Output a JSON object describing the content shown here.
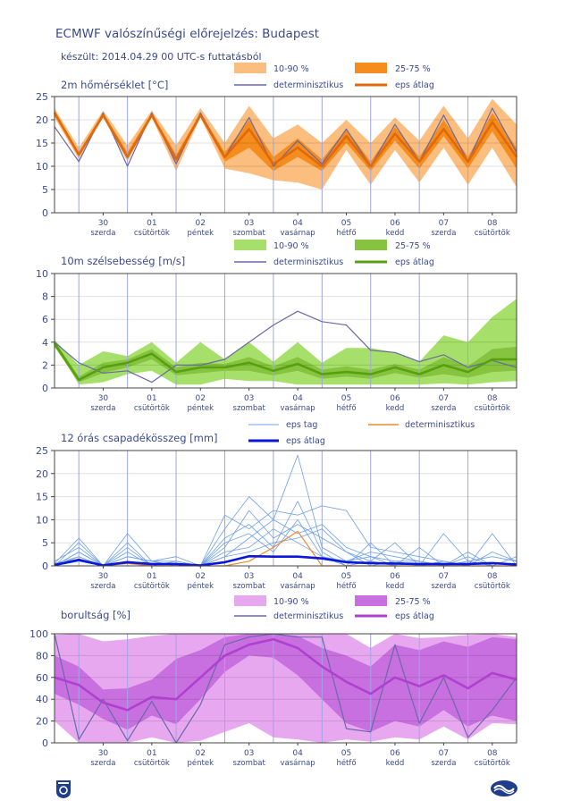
{
  "page": {
    "title": "ECMWF valószínűségi előrejelzés: Budapest",
    "subtitle": "készült: 2014.04.29 00 UTC-s futtatásból"
  },
  "logos": {
    "left": "omsz-logo-icon",
    "right": "ecmwf-logo-icon"
  },
  "colors": {
    "axis_text": "#3b4a8c",
    "grid": "#9ea6e6",
    "det": "#6a68a8",
    "precip_member": "#6fa0e8",
    "precip_mean": "#0a16d8",
    "precip_det": "#f08a2a"
  },
  "x_axis": {
    "days": [
      "30",
      "01",
      "02",
      "03",
      "04",
      "05",
      "06",
      "07",
      "08"
    ],
    "weekdays": [
      "szerda",
      "csütörtök",
      "péntek",
      "szombat",
      "vasárnap",
      "hétfő",
      "kedd",
      "szerda",
      "csütörtök"
    ]
  },
  "chart_data": [
    {
      "id": "temp",
      "type": "area",
      "title": "2m hőmérséklet [°C]",
      "ylim": [
        0,
        25
      ],
      "yticks": [
        0,
        5,
        10,
        15,
        20,
        25
      ],
      "grid": true,
      "legend": {
        "band_outer": "10-90 %",
        "band_inner": "25-75 %",
        "det": "determinisztikus",
        "mean": "eps átlag"
      },
      "colors": {
        "outer": "#fbbe7e",
        "inner": "#f58c1e",
        "mean": "#e06a0a"
      },
      "x": [
        0,
        0.5,
        1,
        1.5,
        2,
        2.5,
        3,
        3.5,
        4,
        4.5,
        5,
        5.5,
        6,
        6.5,
        7,
        7.5,
        8,
        8.5,
        9,
        9.5
      ],
      "p10": [
        20.5,
        11.5,
        20.5,
        11,
        20.5,
        9,
        20.5,
        9.5,
        8.5,
        7,
        6.5,
        5,
        13.5,
        6,
        13.5,
        6.5,
        14,
        6,
        14,
        5.5
      ],
      "p90": [
        22.5,
        14,
        22,
        14.5,
        22,
        14.5,
        22.5,
        15,
        23,
        16,
        19,
        15,
        20,
        15,
        20.5,
        15.5,
        23,
        16,
        24.5,
        19
      ],
      "p25": [
        21,
        12,
        21,
        11.5,
        21,
        10.5,
        21,
        11,
        14,
        9,
        12,
        9,
        15,
        9,
        15.5,
        9.5,
        16.5,
        9.5,
        17.5,
        9.5
      ],
      "p75": [
        22,
        13,
        21.5,
        13,
        21.5,
        12.5,
        21.5,
        13,
        20,
        12,
        16,
        11.5,
        18,
        11,
        18.5,
        12,
        20,
        12,
        21.5,
        14
      ],
      "mean": [
        21.5,
        12.5,
        21,
        12,
        21,
        11.5,
        21,
        12,
        18,
        10.5,
        14,
        10,
        16.5,
        10,
        17,
        11,
        18,
        11,
        19.5,
        12
      ],
      "det": [
        18.5,
        11,
        21.5,
        10,
        21.5,
        10.5,
        21.5,
        12,
        20.5,
        10,
        15.5,
        10.5,
        18,
        10,
        19,
        11,
        21,
        11,
        22.5,
        13
      ]
    },
    {
      "id": "wind",
      "type": "area",
      "title": "10m szélsebesség [m/s]",
      "ylim": [
        0,
        10
      ],
      "yticks": [
        0,
        2,
        4,
        6,
        8,
        10
      ],
      "grid": true,
      "legend": {
        "band_outer": "10-90 %",
        "band_inner": "25-75 %",
        "det": "determinisztikus",
        "mean": "eps átlag"
      },
      "colors": {
        "outer": "#a6e06a",
        "inner": "#86c440",
        "mean": "#58a010"
      },
      "x": [
        0,
        0.5,
        1,
        1.5,
        2,
        2.5,
        3,
        3.5,
        4,
        4.5,
        5,
        5.5,
        6,
        6.5,
        7,
        7.5,
        8,
        8.5,
        9,
        9.5
      ],
      "p10": [
        3.8,
        0.3,
        0.5,
        1.2,
        1.5,
        0.3,
        0.3,
        0.8,
        0.6,
        0.6,
        0.3,
        0.3,
        0.3,
        0.3,
        0.3,
        0.3,
        0.4,
        0.3,
        0.5,
        0.6
      ],
      "p90": [
        4.2,
        2,
        3.2,
        2.8,
        4,
        2.2,
        4,
        2.5,
        4,
        2.3,
        4,
        2.2,
        3.5,
        3.5,
        3.1,
        2.3,
        4.6,
        4,
        6.2,
        7.8
      ],
      "p25": [
        3.6,
        0.5,
        1.3,
        1.8,
        2.5,
        1.1,
        1.3,
        1.5,
        1.5,
        1.1,
        1.5,
        0.8,
        1,
        0.8,
        1.3,
        0.9,
        1.2,
        0.9,
        1.4,
        1.5
      ],
      "p75": [
        4.1,
        1,
        2.2,
        2.5,
        3.4,
        1.8,
        2.2,
        2.1,
        2.7,
        1.9,
        2.7,
        1.6,
        1.9,
        1.6,
        2.1,
        1.6,
        2.7,
        1.9,
        3.4,
        3.6
      ],
      "mean": [
        3.9,
        0.7,
        1.8,
        2.2,
        3,
        1.4,
        1.8,
        1.8,
        2.2,
        1.5,
        2.1,
        1.2,
        1.4,
        1.2,
        1.8,
        1.2,
        2,
        1.4,
        2.5,
        2.5
      ],
      "det": [
        4,
        2.2,
        1.3,
        1.5,
        0.5,
        2,
        2,
        2.5,
        4,
        5.5,
        6.7,
        5.8,
        5.5,
        3.3,
        3.1,
        2.3,
        2.9,
        1.8,
        2.4,
        1.8
      ]
    },
    {
      "id": "precip",
      "type": "line",
      "title": "12 órás csapadékösszeg [mm]",
      "ylim": [
        0,
        25
      ],
      "yticks": [
        0,
        5,
        10,
        15,
        20,
        25
      ],
      "grid": true,
      "legend": {
        "member": "eps tag",
        "det": "determinisztikus",
        "mean": "eps átlag"
      },
      "x": [
        0,
        0.5,
        1,
        1.5,
        2,
        2.5,
        3,
        3.5,
        4,
        4.5,
        5,
        5.5,
        6,
        6.5,
        7,
        7.5,
        8,
        8.5,
        9,
        9.5
      ],
      "members": [
        [
          0.5,
          6,
          0,
          7,
          1,
          2,
          0,
          8,
          15,
          10,
          24,
          4,
          1,
          2,
          0,
          0,
          0,
          0,
          0,
          0
        ],
        [
          1,
          4,
          0,
          5,
          0,
          1,
          0,
          11,
          8,
          12,
          11,
          13,
          12,
          4,
          3,
          2,
          1,
          0,
          0,
          0
        ],
        [
          0,
          3,
          0,
          3,
          0,
          0,
          0,
          4,
          12,
          6,
          9,
          6,
          3,
          1,
          5,
          0,
          7,
          1,
          2,
          1
        ],
        [
          0,
          5,
          0,
          2,
          1,
          0,
          0,
          2,
          6,
          10,
          7,
          9,
          4,
          2,
          1,
          1,
          0,
          3,
          0,
          2
        ],
        [
          0,
          2,
          0,
          1,
          0,
          0,
          0,
          6,
          9,
          4,
          14,
          3,
          0,
          5,
          0,
          0,
          1,
          0,
          7,
          0
        ],
        [
          0,
          1,
          0,
          4,
          0,
          0,
          0,
          3,
          4,
          8,
          5,
          2,
          0,
          1,
          0,
          4,
          0,
          1,
          0,
          0
        ],
        [
          0.5,
          2,
          0,
          2,
          1,
          1,
          0,
          5,
          7,
          3,
          10,
          2,
          1,
          3,
          2,
          1,
          0,
          0,
          3,
          1
        ],
        [
          0,
          3,
          0,
          1,
          0,
          0,
          0,
          2,
          3,
          5,
          6,
          8,
          3,
          0,
          1,
          0,
          0,
          2,
          0,
          0
        ]
      ],
      "det": [
        0,
        1.5,
        0,
        0.5,
        0,
        0,
        0,
        0,
        1,
        4,
        7.5,
        0,
        0,
        0,
        0,
        0,
        0,
        0,
        0,
        0
      ],
      "mean": [
        0.2,
        1.3,
        0.1,
        0.8,
        0.4,
        0.4,
        0.1,
        0.8,
        2.1,
        2.0,
        2.0,
        1.6,
        0.8,
        0.6,
        0.5,
        0.4,
        0.4,
        0.4,
        0.6,
        0.3
      ]
    },
    {
      "id": "cloud",
      "type": "area",
      "title": "borultság [%]",
      "ylim": [
        0,
        100
      ],
      "yticks": [
        0,
        20,
        40,
        60,
        80,
        100
      ],
      "grid": true,
      "legend": {
        "band_outer": "10-90 %",
        "band_inner": "25-75 %",
        "det": "determinisztikus",
        "mean": "eps átlag"
      },
      "colors": {
        "outer": "#e8a8f0",
        "inner": "#c870e0",
        "mean": "#b040d0"
      },
      "x": [
        0,
        0.5,
        1,
        1.5,
        2,
        2.5,
        3,
        3.5,
        4,
        4.5,
        5,
        5.5,
        6,
        6.5,
        7,
        7.5,
        8,
        8.5,
        9,
        9.5
      ],
      "p10": [
        20,
        0,
        0,
        0,
        5,
        0,
        2,
        10,
        18,
        5,
        3,
        0,
        3,
        1,
        5,
        3,
        15,
        3,
        18,
        17
      ],
      "p90": [
        99,
        100,
        93,
        95,
        98,
        100,
        100,
        100,
        100,
        100,
        100,
        100,
        100,
        87,
        100,
        96,
        97,
        99,
        100,
        97
      ],
      "p25": [
        45,
        35,
        22,
        12,
        25,
        17,
        40,
        65,
        80,
        78,
        62,
        40,
        18,
        10,
        20,
        15,
        30,
        15,
        25,
        20
      ],
      "p75": [
        80,
        70,
        49,
        50,
        58,
        77,
        85,
        97,
        100,
        100,
        98,
        87,
        80,
        70,
        90,
        85,
        93,
        88,
        97,
        95
      ],
      "mean": [
        60,
        53,
        37,
        30,
        42,
        40,
        60,
        80,
        90,
        95,
        87,
        70,
        56,
        45,
        60,
        52,
        62,
        50,
        64,
        58
      ],
      "det": [
        100,
        3,
        40,
        2,
        38,
        0,
        35,
        90,
        97,
        100,
        97,
        97,
        13,
        10,
        90,
        18,
        60,
        5,
        30,
        60
      ]
    }
  ]
}
